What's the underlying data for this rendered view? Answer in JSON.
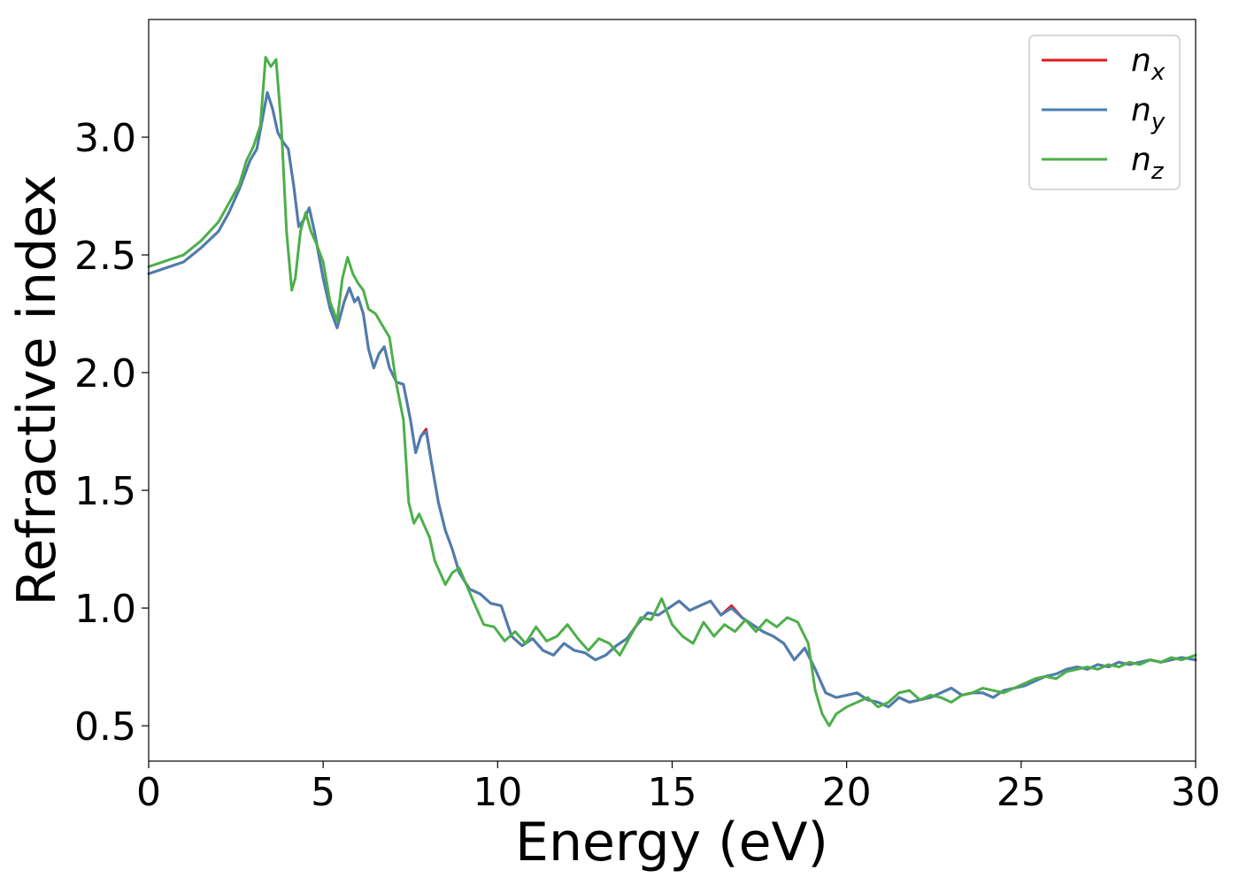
{
  "chart_data": {
    "type": "line",
    "xlabel": "Energy (eV)",
    "ylabel": "Refractive index",
    "xlim": [
      0,
      30
    ],
    "ylim": [
      0.35,
      3.5
    ],
    "xticks": [
      "0",
      "5",
      "10",
      "15",
      "20",
      "25",
      "30"
    ],
    "yticks": [
      "0.5",
      "1.0",
      "1.5",
      "2.0",
      "2.5",
      "3.0"
    ],
    "grid": false,
    "legend_position": "top-right",
    "series": [
      {
        "name": "n",
        "subscript": "x",
        "color": "#e41a1c",
        "x": [
          0,
          1,
          1.5,
          2,
          2.3,
          2.6,
          2.9,
          3.1,
          3.4,
          3.55,
          3.7,
          3.85,
          4.0,
          4.15,
          4.3,
          4.45,
          4.6,
          4.75,
          5.0,
          5.2,
          5.4,
          5.6,
          5.75,
          5.9,
          6.0,
          6.15,
          6.3,
          6.45,
          6.6,
          6.75,
          6.9,
          7.1,
          7.3,
          7.5,
          7.65,
          7.8,
          7.95,
          8.1,
          8.3,
          8.5,
          8.7,
          8.9,
          9.2,
          9.5,
          9.8,
          10.1,
          10.4,
          10.7,
          11.0,
          11.3,
          11.6,
          11.9,
          12.2,
          12.5,
          12.8,
          13.1,
          13.4,
          13.7,
          14.0,
          14.3,
          14.6,
          14.9,
          15.2,
          15.5,
          15.8,
          16.1,
          16.4,
          16.7,
          17.0,
          17.3,
          17.6,
          17.9,
          18.2,
          18.5,
          18.8,
          19.1,
          19.4,
          19.7,
          20.0,
          20.3,
          20.6,
          20.9,
          21.2,
          21.5,
          21.8,
          22.1,
          22.4,
          22.7,
          23.0,
          23.3,
          23.6,
          23.9,
          24.2,
          24.5,
          24.8,
          25.1,
          25.4,
          25.7,
          26.0,
          26.3,
          26.6,
          26.9,
          27.2,
          27.5,
          27.8,
          28.1,
          28.4,
          28.7,
          29.0,
          29.3,
          29.6,
          30
        ],
        "y": [
          2.42,
          2.47,
          2.53,
          2.6,
          2.68,
          2.78,
          2.9,
          2.95,
          3.19,
          3.12,
          3.02,
          2.98,
          2.95,
          2.8,
          2.62,
          2.65,
          2.7,
          2.6,
          2.4,
          2.27,
          2.19,
          2.3,
          2.36,
          2.3,
          2.32,
          2.25,
          2.1,
          2.02,
          2.08,
          2.11,
          2.02,
          1.96,
          1.95,
          1.8,
          1.66,
          1.73,
          1.76,
          1.62,
          1.45,
          1.33,
          1.25,
          1.15,
          1.08,
          1.06,
          1.02,
          1.01,
          0.88,
          0.84,
          0.87,
          0.82,
          0.8,
          0.85,
          0.82,
          0.81,
          0.78,
          0.8,
          0.84,
          0.87,
          0.93,
          0.98,
          0.97,
          1.0,
          1.03,
          0.99,
          1.01,
          1.03,
          0.97,
          1.01,
          0.96,
          0.93,
          0.9,
          0.88,
          0.85,
          0.78,
          0.83,
          0.74,
          0.64,
          0.62,
          0.63,
          0.64,
          0.61,
          0.6,
          0.58,
          0.62,
          0.6,
          0.61,
          0.62,
          0.64,
          0.66,
          0.63,
          0.64,
          0.64,
          0.62,
          0.65,
          0.66,
          0.67,
          0.69,
          0.71,
          0.72,
          0.74,
          0.75,
          0.74,
          0.76,
          0.75,
          0.77,
          0.76,
          0.77,
          0.78,
          0.77,
          0.78,
          0.79,
          0.78
        ]
      },
      {
        "name": "n",
        "subscript": "y",
        "color": "#4a7fb0",
        "x": [
          0,
          1,
          1.5,
          2,
          2.3,
          2.6,
          2.9,
          3.1,
          3.4,
          3.55,
          3.7,
          3.85,
          4.0,
          4.15,
          4.3,
          4.45,
          4.6,
          4.75,
          5.0,
          5.2,
          5.4,
          5.6,
          5.75,
          5.9,
          6.0,
          6.15,
          6.3,
          6.45,
          6.6,
          6.75,
          6.9,
          7.1,
          7.3,
          7.5,
          7.65,
          7.8,
          7.95,
          8.1,
          8.3,
          8.5,
          8.7,
          8.9,
          9.2,
          9.5,
          9.8,
          10.1,
          10.4,
          10.7,
          11.0,
          11.3,
          11.6,
          11.9,
          12.2,
          12.5,
          12.8,
          13.1,
          13.4,
          13.7,
          14.0,
          14.3,
          14.6,
          14.9,
          15.2,
          15.5,
          15.8,
          16.1,
          16.4,
          16.7,
          17.0,
          17.3,
          17.6,
          17.9,
          18.2,
          18.5,
          18.8,
          19.1,
          19.4,
          19.7,
          20.0,
          20.3,
          20.6,
          20.9,
          21.2,
          21.5,
          21.8,
          22.1,
          22.4,
          22.7,
          23.0,
          23.3,
          23.6,
          23.9,
          24.2,
          24.5,
          24.8,
          25.1,
          25.4,
          25.7,
          26.0,
          26.3,
          26.6,
          26.9,
          27.2,
          27.5,
          27.8,
          28.1,
          28.4,
          28.7,
          29.0,
          29.3,
          29.6,
          30
        ],
        "y": [
          2.42,
          2.47,
          2.53,
          2.6,
          2.68,
          2.78,
          2.9,
          2.95,
          3.19,
          3.12,
          3.02,
          2.98,
          2.95,
          2.8,
          2.62,
          2.65,
          2.7,
          2.6,
          2.4,
          2.27,
          2.19,
          2.3,
          2.36,
          2.3,
          2.32,
          2.25,
          2.1,
          2.02,
          2.08,
          2.11,
          2.02,
          1.96,
          1.95,
          1.8,
          1.66,
          1.73,
          1.75,
          1.62,
          1.45,
          1.33,
          1.25,
          1.15,
          1.08,
          1.06,
          1.02,
          1.01,
          0.88,
          0.84,
          0.87,
          0.82,
          0.8,
          0.85,
          0.82,
          0.81,
          0.78,
          0.8,
          0.84,
          0.87,
          0.93,
          0.98,
          0.97,
          1.0,
          1.03,
          0.99,
          1.01,
          1.03,
          0.97,
          1.0,
          0.96,
          0.93,
          0.9,
          0.88,
          0.85,
          0.78,
          0.83,
          0.74,
          0.64,
          0.62,
          0.63,
          0.64,
          0.61,
          0.6,
          0.58,
          0.62,
          0.6,
          0.61,
          0.62,
          0.64,
          0.66,
          0.63,
          0.64,
          0.64,
          0.62,
          0.65,
          0.66,
          0.67,
          0.69,
          0.71,
          0.72,
          0.74,
          0.75,
          0.74,
          0.76,
          0.75,
          0.77,
          0.76,
          0.77,
          0.78,
          0.77,
          0.78,
          0.79,
          0.78
        ]
      },
      {
        "name": "n",
        "subscript": "z",
        "color": "#4daf4a",
        "x": [
          0,
          1,
          1.5,
          2,
          2.3,
          2.6,
          2.8,
          3.0,
          3.2,
          3.35,
          3.5,
          3.65,
          3.8,
          3.95,
          4.1,
          4.2,
          4.35,
          4.5,
          4.65,
          4.8,
          5.0,
          5.2,
          5.4,
          5.55,
          5.7,
          5.85,
          6.0,
          6.15,
          6.3,
          6.5,
          6.7,
          6.9,
          7.1,
          7.3,
          7.45,
          7.6,
          7.75,
          7.9,
          8.05,
          8.2,
          8.35,
          8.5,
          8.7,
          8.9,
          9.1,
          9.3,
          9.6,
          9.9,
          10.2,
          10.5,
          10.8,
          11.1,
          11.4,
          11.7,
          12.0,
          12.3,
          12.6,
          12.9,
          13.2,
          13.5,
          13.8,
          14.1,
          14.4,
          14.7,
          15.0,
          15.3,
          15.6,
          15.9,
          16.2,
          16.5,
          16.8,
          17.1,
          17.4,
          17.7,
          18.0,
          18.3,
          18.6,
          18.9,
          19.1,
          19.3,
          19.5,
          19.7,
          20.0,
          20.3,
          20.6,
          20.9,
          21.2,
          21.5,
          21.8,
          22.1,
          22.4,
          22.7,
          23.0,
          23.3,
          23.6,
          23.9,
          24.2,
          24.5,
          24.8,
          25.1,
          25.4,
          25.7,
          26.0,
          26.3,
          26.6,
          26.9,
          27.2,
          27.5,
          27.8,
          28.1,
          28.4,
          28.7,
          29.0,
          29.3,
          29.6,
          30
        ],
        "y": [
          2.45,
          2.5,
          2.56,
          2.64,
          2.72,
          2.8,
          2.9,
          2.96,
          3.05,
          3.34,
          3.3,
          3.33,
          3.05,
          2.6,
          2.35,
          2.4,
          2.6,
          2.68,
          2.6,
          2.55,
          2.47,
          2.3,
          2.22,
          2.4,
          2.49,
          2.42,
          2.38,
          2.35,
          2.27,
          2.25,
          2.2,
          2.15,
          1.95,
          1.8,
          1.45,
          1.36,
          1.4,
          1.35,
          1.3,
          1.2,
          1.15,
          1.1,
          1.15,
          1.17,
          1.1,
          1.03,
          0.93,
          0.92,
          0.86,
          0.9,
          0.85,
          0.92,
          0.86,
          0.88,
          0.93,
          0.87,
          0.82,
          0.87,
          0.85,
          0.8,
          0.88,
          0.96,
          0.95,
          1.04,
          0.93,
          0.88,
          0.85,
          0.94,
          0.88,
          0.93,
          0.9,
          0.95,
          0.9,
          0.95,
          0.92,
          0.96,
          0.94,
          0.85,
          0.65,
          0.55,
          0.5,
          0.55,
          0.58,
          0.6,
          0.62,
          0.58,
          0.6,
          0.64,
          0.65,
          0.61,
          0.63,
          0.62,
          0.6,
          0.63,
          0.64,
          0.66,
          0.65,
          0.64,
          0.66,
          0.68,
          0.7,
          0.71,
          0.7,
          0.73,
          0.74,
          0.75,
          0.74,
          0.76,
          0.75,
          0.77,
          0.76,
          0.78,
          0.77,
          0.79,
          0.78,
          0.8
        ]
      }
    ]
  }
}
